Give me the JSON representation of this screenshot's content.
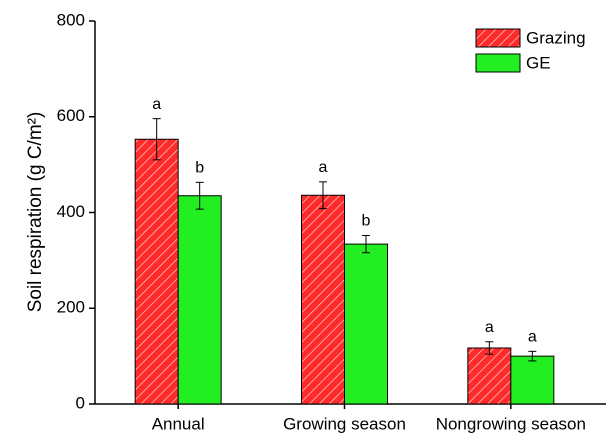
{
  "chart_data": {
    "type": "bar",
    "y_label": "Soil respiration (g C/m²)",
    "categories": [
      "Annual",
      "Growing season",
      "Nongrowing season"
    ],
    "series": [
      {
        "name": "Grazing",
        "color": "#ff2a2a",
        "hatch": true,
        "values": [
          553,
          436,
          117
        ],
        "errors": [
          43,
          28,
          13
        ],
        "letters": [
          "a",
          "a",
          "a"
        ]
      },
      {
        "name": "GE",
        "color": "#22ee22",
        "hatch": false,
        "values": [
          435,
          334,
          100
        ],
        "errors": [
          28,
          18,
          10
        ],
        "letters": [
          "b",
          "b",
          "a"
        ]
      }
    ],
    "ylim": [
      0,
      800
    ],
    "yticks": [
      0,
      200,
      400,
      600,
      800
    ],
    "legend": "top-right"
  }
}
